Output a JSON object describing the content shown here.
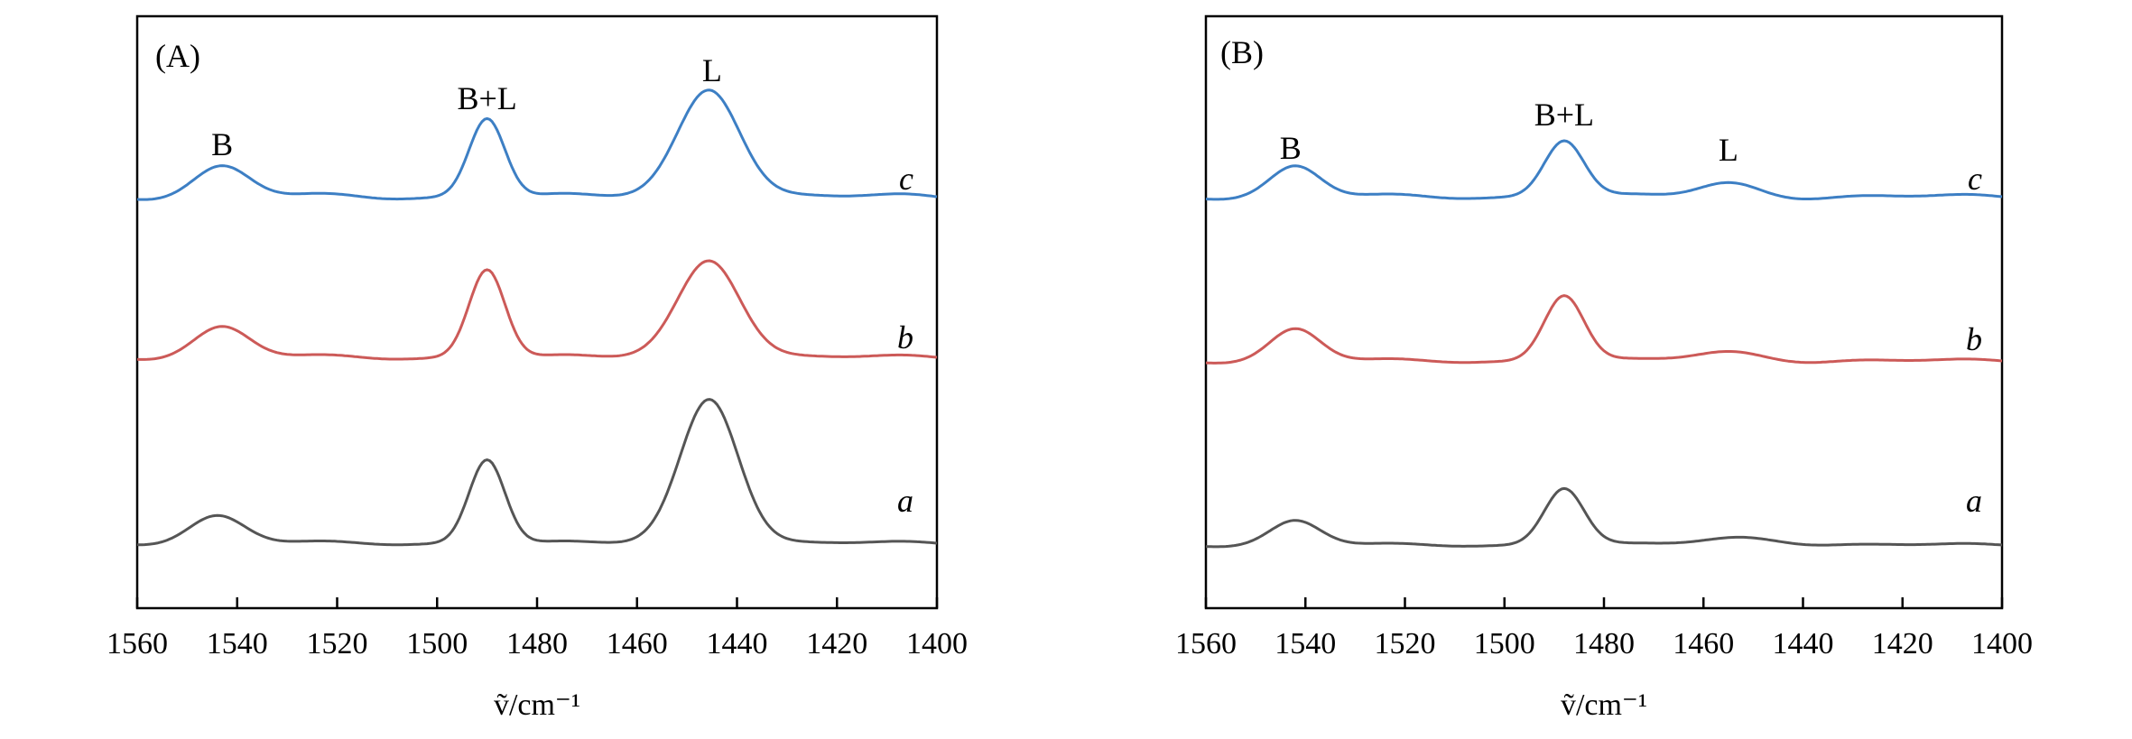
{
  "chart_data": [
    {
      "type": "line",
      "panel_label": "(A)",
      "xlabel": "ṽ/cm⁻¹",
      "ylabel": "",
      "xlim": [
        1560,
        1400
      ],
      "xticks": [
        1560,
        1540,
        1520,
        1500,
        1480,
        1460,
        1440,
        1420,
        1400
      ],
      "peak_annotations": [
        {
          "text": "B",
          "x": 1543
        },
        {
          "text": "B+L",
          "x": 1490
        },
        {
          "text": "L",
          "x": 1445
        }
      ],
      "series": [
        {
          "name": "c",
          "color": "#3d7fc4",
          "baseline": 0.0,
          "noise": 0.015,
          "peaks": [
            {
              "center": 1543,
              "height": 0.2,
              "width": 5.5
            },
            {
              "center": 1490,
              "height": 0.53,
              "width": 3.6
            },
            {
              "center": 1445.5,
              "height": 0.72,
              "width": 6.2
            }
          ]
        },
        {
          "name": "b",
          "color": "#cc5a58",
          "baseline": 0.0,
          "noise": 0.012,
          "peaks": [
            {
              "center": 1543,
              "height": 0.2,
              "width": 5.5
            },
            {
              "center": 1490,
              "height": 0.59,
              "width": 3.6
            },
            {
              "center": 1445.5,
              "height": 0.65,
              "width": 6.2
            }
          ]
        },
        {
          "name": "a",
          "color": "#555555",
          "baseline": 0.0,
          "noise": 0.01,
          "peaks": [
            {
              "center": 1544,
              "height": 0.18,
              "width": 5.5
            },
            {
              "center": 1490,
              "height": 0.56,
              "width": 3.6
            },
            {
              "center": 1445.5,
              "height": 0.96,
              "width": 5.8
            }
          ]
        }
      ]
    },
    {
      "type": "line",
      "panel_label": "(B)",
      "xlabel": "ṽ/cm⁻¹",
      "ylabel": "",
      "xlim": [
        1560,
        1400
      ],
      "xticks": [
        1560,
        1540,
        1520,
        1500,
        1480,
        1460,
        1440,
        1420,
        1400
      ],
      "peak_annotations": [
        {
          "text": "B",
          "x": 1543
        },
        {
          "text": "B+L",
          "x": 1488
        },
        {
          "text": "L",
          "x": 1455
        }
      ],
      "series": [
        {
          "name": "c",
          "color": "#3d7fc4",
          "baseline": 0.0,
          "noise": 0.012,
          "peaks": [
            {
              "center": 1542,
              "height": 0.2,
              "width": 5.0
            },
            {
              "center": 1488,
              "height": 0.38,
              "width": 4.0
            },
            {
              "center": 1455,
              "height": 0.09,
              "width": 6.0
            }
          ]
        },
        {
          "name": "b",
          "color": "#cc5a58",
          "baseline": 0.0,
          "noise": 0.01,
          "peaks": [
            {
              "center": 1542,
              "height": 0.21,
              "width": 5.0
            },
            {
              "center": 1488,
              "height": 0.44,
              "width": 4.0
            },
            {
              "center": 1455,
              "height": 0.06,
              "width": 7.0
            }
          ]
        },
        {
          "name": "a",
          "color": "#555555",
          "baseline": 0.0,
          "noise": 0.008,
          "peaks": [
            {
              "center": 1542,
              "height": 0.16,
              "width": 5.0
            },
            {
              "center": 1488,
              "height": 0.38,
              "width": 4.0
            },
            {
              "center": 1452,
              "height": 0.05,
              "width": 8.0
            }
          ]
        }
      ]
    }
  ]
}
